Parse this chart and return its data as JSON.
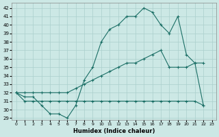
{
  "xlabel": "Humidex (Indice chaleur)",
  "bg_color": "#cce8e5",
  "grid_color": "#aacfcc",
  "line_color": "#1a6e65",
  "xlim": [
    -0.5,
    23.5
  ],
  "ylim": [
    28.8,
    42.6
  ],
  "yticks": [
    29,
    30,
    31,
    32,
    33,
    34,
    35,
    36,
    37,
    38,
    39,
    40,
    41,
    42
  ],
  "xticks": [
    0,
    1,
    2,
    3,
    4,
    5,
    6,
    7,
    8,
    9,
    10,
    11,
    12,
    13,
    14,
    15,
    16,
    17,
    18,
    19,
    20,
    21,
    22,
    23
  ],
  "line1_x": [
    0,
    1,
    2,
    3,
    4,
    5,
    6,
    7,
    8,
    9,
    10,
    11,
    12,
    13,
    14,
    15,
    16,
    17,
    18,
    19,
    20,
    21,
    22
  ],
  "line1_y": [
    32.0,
    31.5,
    31.5,
    30.5,
    29.5,
    29.5,
    29.0,
    30.5,
    33.5,
    35.0,
    38.0,
    39.5,
    40.0,
    41.0,
    41.0,
    42.0,
    41.5,
    40.0,
    39.0,
    41.0,
    36.5,
    35.5,
    30.5
  ],
  "line2_x": [
    0,
    1,
    2,
    3,
    4,
    5,
    6,
    7,
    8,
    9,
    10,
    11,
    12,
    13,
    14,
    15,
    16,
    17,
    18,
    19,
    20,
    21,
    22
  ],
  "line2_y": [
    32.0,
    32.0,
    32.0,
    32.0,
    32.0,
    32.0,
    32.0,
    32.5,
    33.0,
    33.5,
    34.0,
    34.5,
    35.0,
    35.5,
    35.5,
    36.0,
    36.5,
    37.0,
    35.0,
    35.0,
    35.0,
    35.5,
    35.5
  ],
  "line3_x": [
    0,
    1,
    2,
    3,
    4,
    5,
    6,
    7,
    8,
    9,
    10,
    11,
    12,
    13,
    14,
    15,
    16,
    17,
    18,
    19,
    20,
    21,
    22
  ],
  "line3_y": [
    32.0,
    31.0,
    31.0,
    31.0,
    31.0,
    31.0,
    31.0,
    31.0,
    31.0,
    31.0,
    31.0,
    31.0,
    31.0,
    31.0,
    31.0,
    31.0,
    31.0,
    31.0,
    31.0,
    31.0,
    31.0,
    31.0,
    30.5
  ]
}
